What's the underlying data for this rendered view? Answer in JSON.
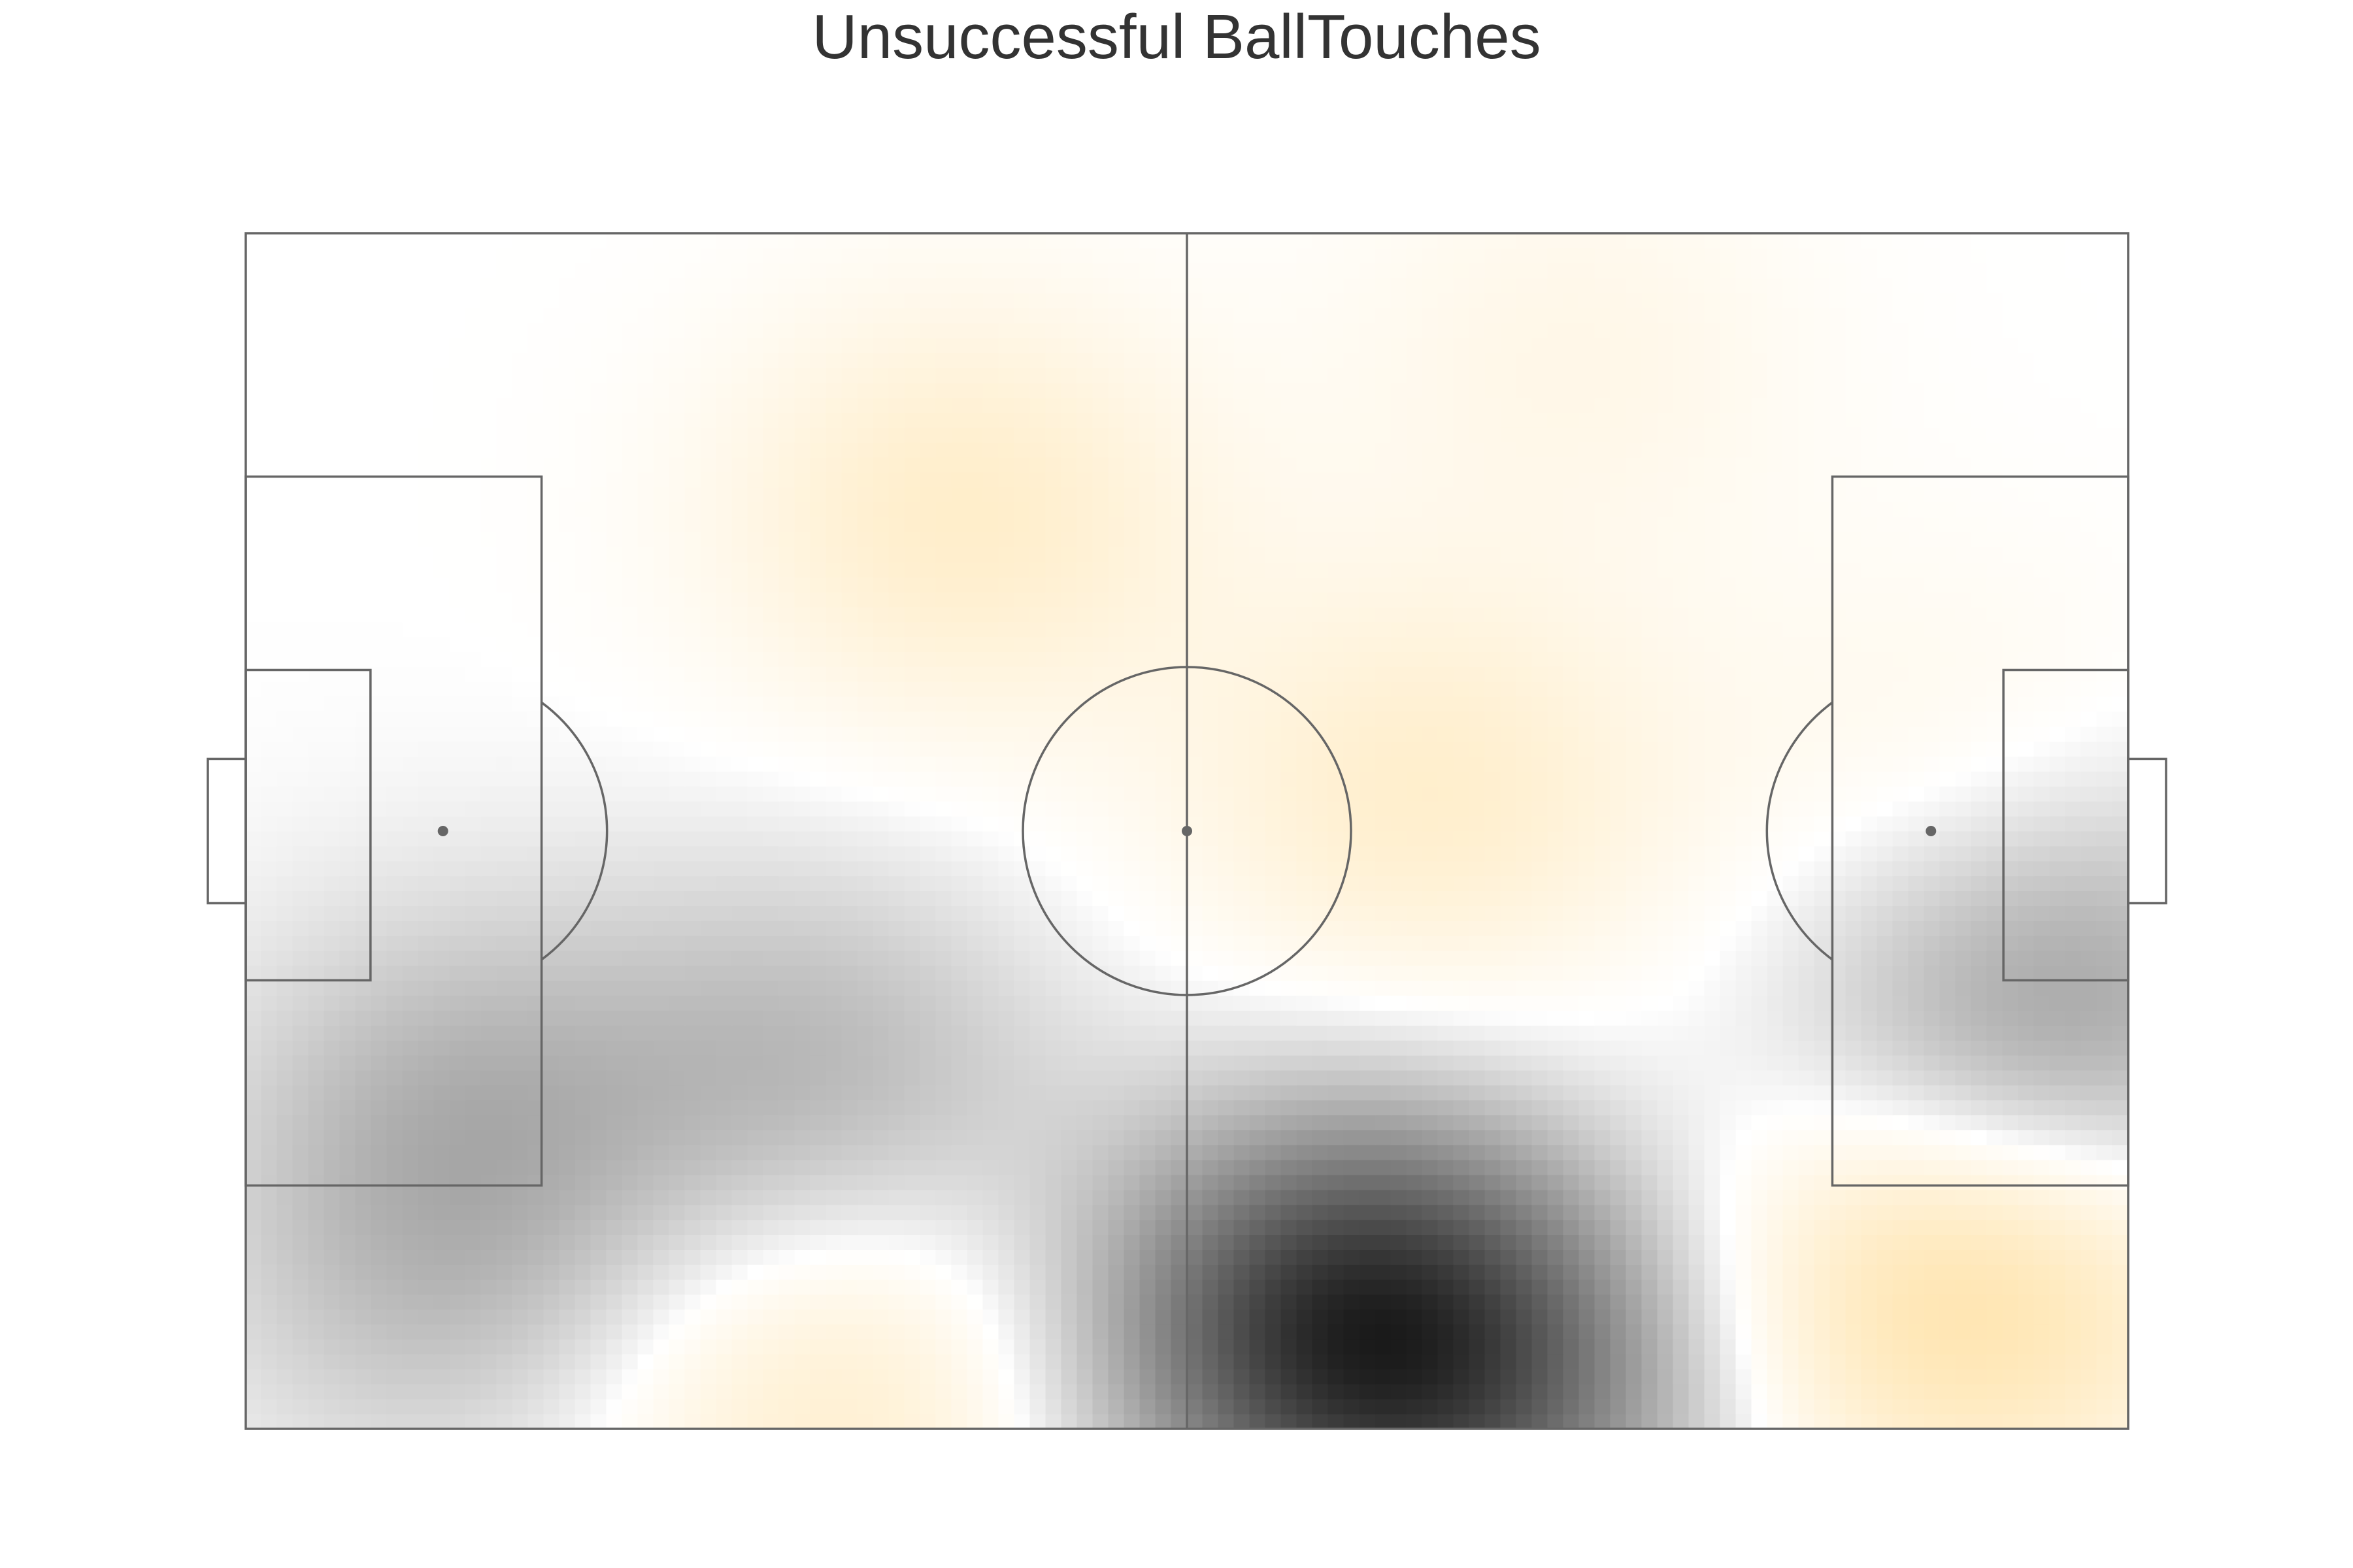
{
  "chart_data": {
    "type": "heatmap",
    "title": "Unsuccessful BallTouches",
    "xlabel": "",
    "ylabel": "",
    "xlim": [
      0,
      105
    ],
    "ylim": [
      0,
      68
    ],
    "grid": false,
    "legend": "none",
    "colors": {
      "line": "#666666",
      "spot": "#666666",
      "background": "#ffffff",
      "low_end": "#ffc44d",
      "high_end": "#1a1a1a",
      "title": "#333333"
    },
    "density_hotspots": [
      {
        "x": 62,
        "y": 6.5,
        "value": 1.0
      },
      {
        "x": 70,
        "y": 2.0,
        "value": 0.55
      },
      {
        "x": 57,
        "y": 4.0,
        "value": 0.25
      },
      {
        "x": 99,
        "y": 21.0,
        "value": 0.5
      },
      {
        "x": 32,
        "y": 20.0,
        "value": 0.38
      },
      {
        "x": 12,
        "y": 19.0,
        "value": 0.33
      },
      {
        "x": 11,
        "y": 8.0,
        "value": 0.28
      },
      {
        "x": 96,
        "y": 8.5,
        "value": -0.75
      },
      {
        "x": 33,
        "y": 2.0,
        "value": -0.38
      },
      {
        "x": 40,
        "y": 52.0,
        "value": -0.4
      },
      {
        "x": 66,
        "y": 36.0,
        "value": -0.38
      },
      {
        "x": 74,
        "y": 61.0,
        "value": -0.16
      },
      {
        "x": 95,
        "y": 38.0,
        "value": -0.14
      },
      {
        "x": 104,
        "y": 28.0,
        "value": 0.18
      }
    ]
  }
}
